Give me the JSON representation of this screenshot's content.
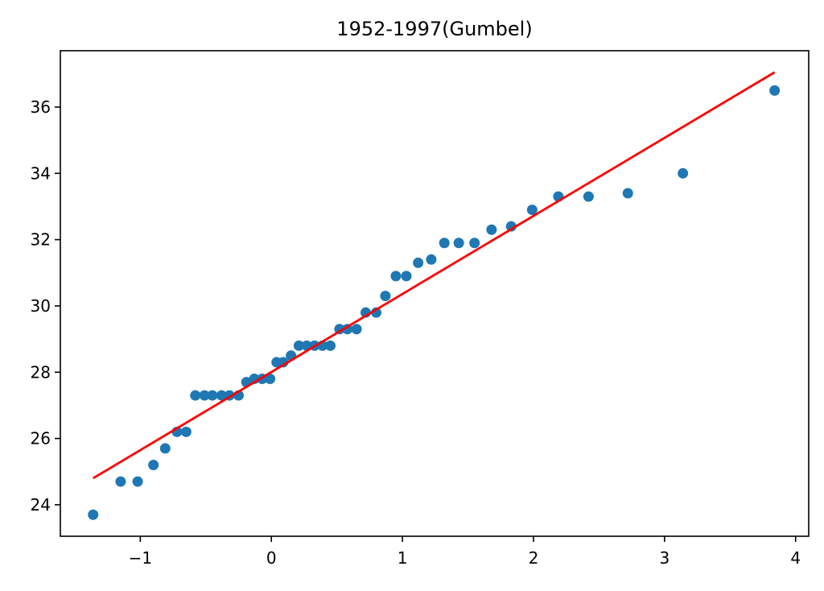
{
  "chart_data": {
    "type": "scatter",
    "title": "1952-1997(Gumbel)",
    "xlabel": "",
    "ylabel": "",
    "xlim": [
      -1.61,
      4.1
    ],
    "ylim": [
      23.05,
      37.7
    ],
    "xticks": [
      -1,
      0,
      1,
      2,
      3,
      4
    ],
    "yticks": [
      24,
      26,
      28,
      30,
      32,
      34,
      36
    ],
    "grid": false,
    "legend": "none",
    "series": [
      {
        "kind": "points",
        "color": "#1f77b4",
        "x": [
          -1.36,
          -1.15,
          -1.02,
          -0.9,
          -0.81,
          -0.72,
          -0.65,
          -0.58,
          -0.51,
          -0.45,
          -0.38,
          -0.32,
          -0.25,
          -0.19,
          -0.13,
          -0.07,
          -0.01,
          0.04,
          0.09,
          0.15,
          0.21,
          0.27,
          0.33,
          0.39,
          0.45,
          0.52,
          0.58,
          0.65,
          0.72,
          0.8,
          0.87,
          0.95,
          1.03,
          1.12,
          1.22,
          1.32,
          1.43,
          1.55,
          1.68,
          1.83,
          1.99,
          2.19,
          2.42,
          2.72,
          3.14,
          3.84
        ],
        "y": [
          23.7,
          24.7,
          24.7,
          25.2,
          25.7,
          26.2,
          26.2,
          27.3,
          27.3,
          27.3,
          27.3,
          27.3,
          27.3,
          27.7,
          27.8,
          27.8,
          27.8,
          28.3,
          28.3,
          28.5,
          28.8,
          28.8,
          28.8,
          28.8,
          28.8,
          29.3,
          29.3,
          29.3,
          29.8,
          29.8,
          30.3,
          30.9,
          30.9,
          31.3,
          31.4,
          31.9,
          31.9,
          31.9,
          32.3,
          32.4,
          32.9,
          33.3,
          33.3,
          33.4,
          34.0,
          36.5
        ]
      },
      {
        "kind": "line",
        "color": "#ff0000",
        "x": [
          -1.36,
          3.84
        ],
        "y": [
          24.8,
          37.05
        ]
      }
    ]
  }
}
